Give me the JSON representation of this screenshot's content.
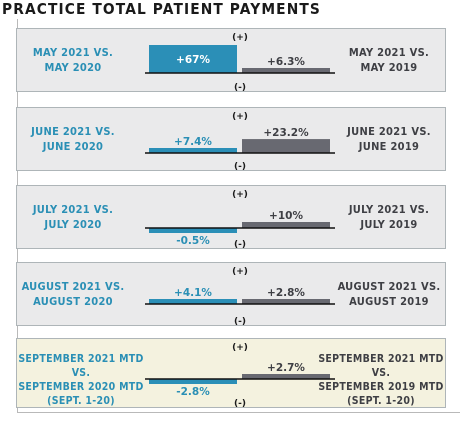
{
  "title": "PRACTICE TOTAL PATIENT PAYMENTS",
  "plus_marker": "(+)",
  "minus_marker": "(-)",
  "colors": {
    "panel_bg": "#eaeaeb",
    "panel_bg_highlight": "#f4f2df",
    "panel_border": "#aeb5b8",
    "left_bar": "#2b8fb7",
    "right_bar": "#686971",
    "left_text": "#2a8fb5",
    "right_text": "#3e3f44"
  },
  "chart_data": {
    "type": "bar",
    "title": "PRACTICE TOTAL PATIENT PAYMENTS",
    "rows": [
      {
        "left_label": [
          "MAY 2021 VS.",
          "MAY 2020"
        ],
        "right_label": [
          "MAY 2021 VS.",
          "MAY 2019"
        ],
        "left_value": 67,
        "left_display": "+67%",
        "right_value": 6.3,
        "right_display": "+6.3%",
        "highlight": false
      },
      {
        "left_label": [
          "JUNE 2021 VS.",
          "JUNE 2020"
        ],
        "right_label": [
          "JUNE 2021 VS.",
          "JUNE 2019"
        ],
        "left_value": 7.4,
        "left_display": "+7.4%",
        "right_value": 23.2,
        "right_display": "+23.2%",
        "highlight": false
      },
      {
        "left_label": [
          "JULY 2021 VS.",
          "JULY 2020"
        ],
        "right_label": [
          "JULY 2021 VS.",
          "JULY 2019"
        ],
        "left_value": -0.5,
        "left_display": "-0.5%",
        "right_value": 10,
        "right_display": "+10%",
        "highlight": false
      },
      {
        "left_label": [
          "AUGUST 2021 VS.",
          "AUGUST 2020"
        ],
        "right_label": [
          "AUGUST 2021 VS.",
          "AUGUST 2019"
        ],
        "left_value": 4.1,
        "left_display": "+4.1%",
        "right_value": 2.8,
        "right_display": "+2.8%",
        "highlight": false
      },
      {
        "left_label": [
          "SEPTEMBER 2021 MTD VS.",
          "SEPTEMBER 2020 MTD",
          "(SEPT. 1-20)"
        ],
        "right_label": [
          "SEPTEMBER 2021 MTD VS.",
          "SEPTEMBER 2019 MTD",
          "(SEPT. 1-20)"
        ],
        "left_value": -2.8,
        "left_display": "-2.8%",
        "right_value": 2.7,
        "right_display": "+2.7%",
        "highlight": true
      }
    ]
  }
}
